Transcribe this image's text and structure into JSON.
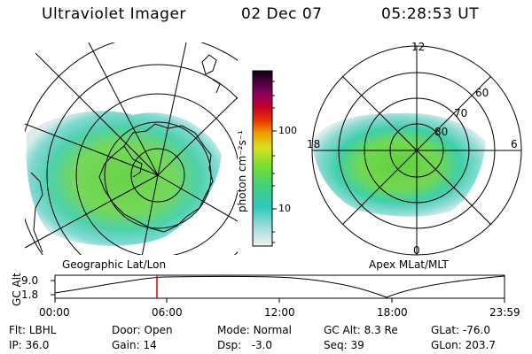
{
  "header": {
    "title": "Ultraviolet Imager",
    "date": "02 Dec 07",
    "time": "05:28:53 UT"
  },
  "colorbar": {
    "tick_labels": [
      "100",
      "10"
    ],
    "unit_label": "photon cm⁻²s⁻¹"
  },
  "left_map": {
    "caption": "Geographic Lat/Lon"
  },
  "right_map": {
    "caption": "Apex MLat/MLT",
    "mlt_labels": {
      "top": "12",
      "left": "18",
      "right": "6",
      "bottom": "0"
    },
    "lat_labels": [
      "60",
      "70",
      "80"
    ]
  },
  "altitude_plot": {
    "ylabel": "GC Alt",
    "ytick_top": "9.0",
    "ytick_bottom": "1.8",
    "time_ticks": [
      "00:00",
      "06:00",
      "12:00",
      "18:00",
      "23:59"
    ],
    "marker_color": "#e00000"
  },
  "info": {
    "flt": {
      "label": "Flt:",
      "value": "LBHL"
    },
    "ip": {
      "label": "IP:",
      "value": "36.0"
    },
    "door": {
      "label": "Door:",
      "value": "Open"
    },
    "gain": {
      "label": "Gain:",
      "value": "14"
    },
    "mode": {
      "label": "Mode:",
      "value": "Normal"
    },
    "dsp": {
      "label": "Dsp:",
      "value": "-3.0"
    },
    "gcalt": {
      "label": "GC Alt:",
      "value": "8.3 Re"
    },
    "seq": {
      "label": "Seq:",
      "value": "39"
    },
    "glat": {
      "label": "GLat:",
      "value": "-76.0"
    },
    "glon": {
      "label": "GLon:",
      "value": "203.7"
    }
  }
}
